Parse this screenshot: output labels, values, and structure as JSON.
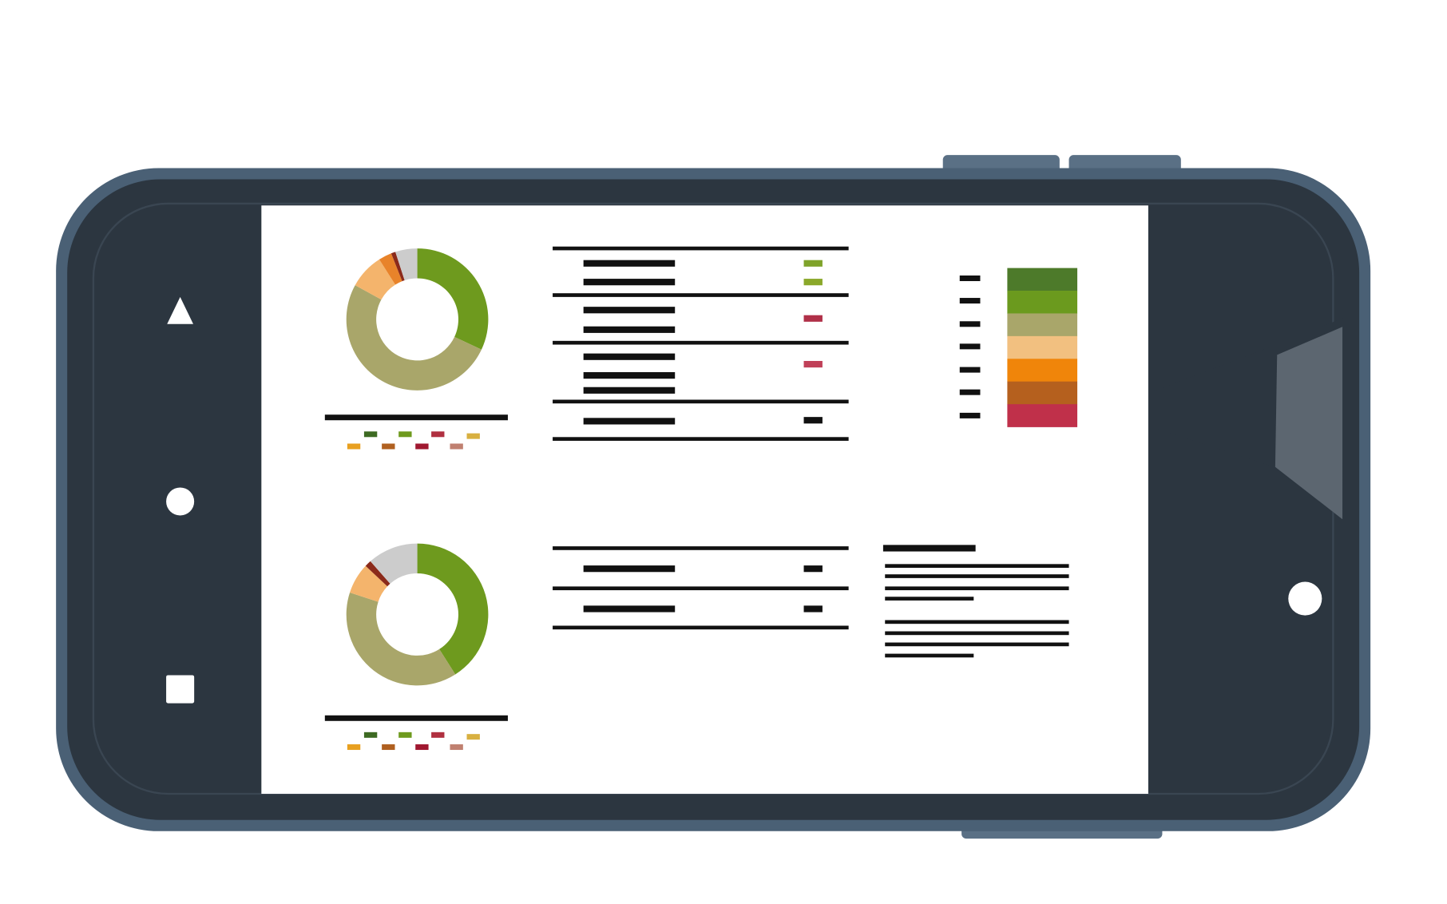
{
  "chart_data": [
    {
      "type": "pie",
      "donut": true,
      "values": [
        32,
        51,
        8,
        3,
        1,
        5
      ],
      "colors": [
        "#6e9a1e",
        "#a9a66a",
        "#f4b46c",
        "#e8832a",
        "#8b2a1a",
        "#cccccc"
      ]
    },
    {
      "type": "pie",
      "donut": true,
      "values": [
        41,
        39,
        7,
        1.5,
        11.5
      ],
      "colors": [
        "#6e9a1e",
        "#a9a66a",
        "#f4b46c",
        "#8b2a1a",
        "#cccccc"
      ]
    }
  ]
}
